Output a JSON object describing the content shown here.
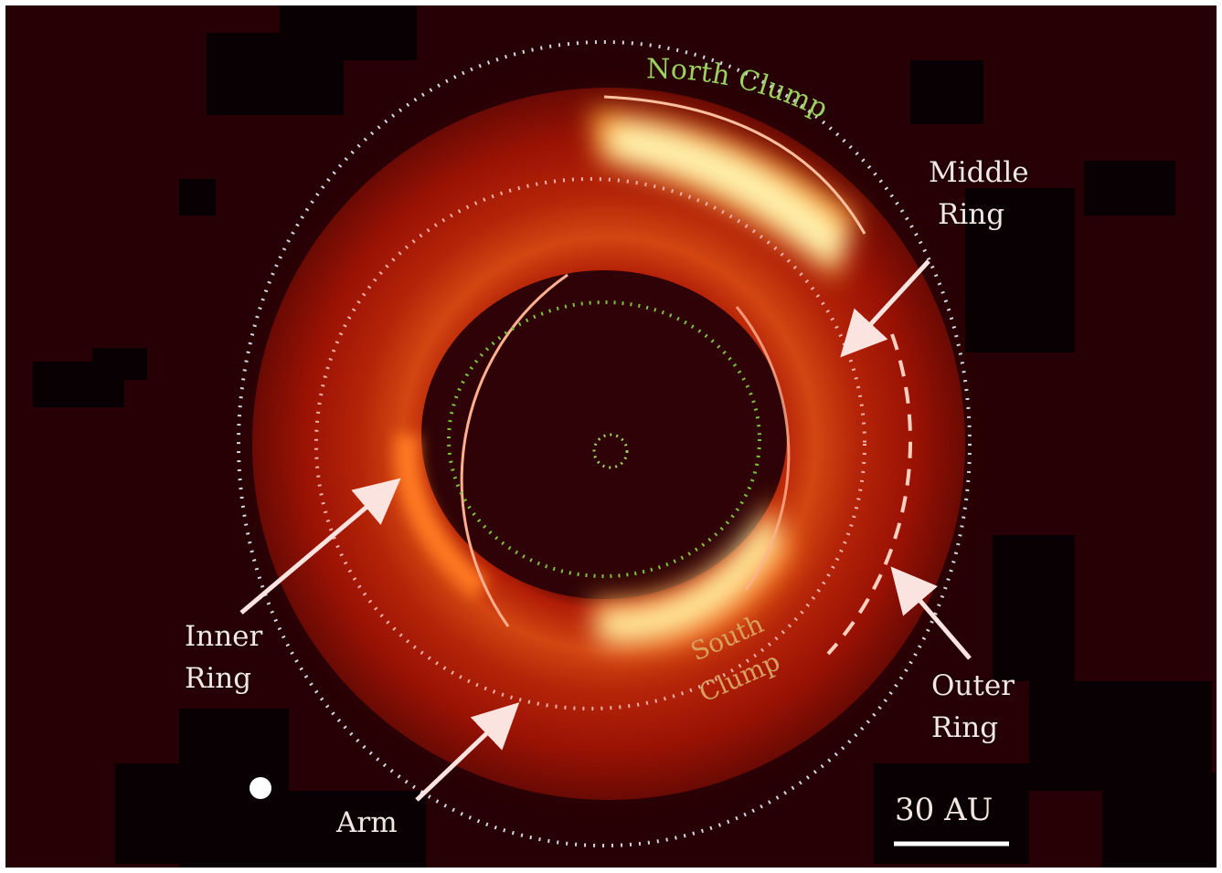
{
  "colors": {
    "background": "#260004",
    "disk_red": "#a81404",
    "glow_yellow": "#fff3a0",
    "green_contour": "#7fc23a",
    "pink_dots": "#f0b0a8",
    "label_text": "#f4e6e2",
    "arrow": "#fbe4e0"
  },
  "labels": {
    "north_clump": "North Clump",
    "south_clump_line1": "South",
    "south_clump_line2": "Clump",
    "middle_ring_line1": "Middle",
    "middle_ring_line2": "Ring",
    "outer_ring_line1": "Outer",
    "outer_ring_line2": "Ring",
    "inner_ring_line1": "Inner",
    "inner_ring_line2": "Ring",
    "arm": "Arm",
    "scale_bar": "30 AU"
  }
}
